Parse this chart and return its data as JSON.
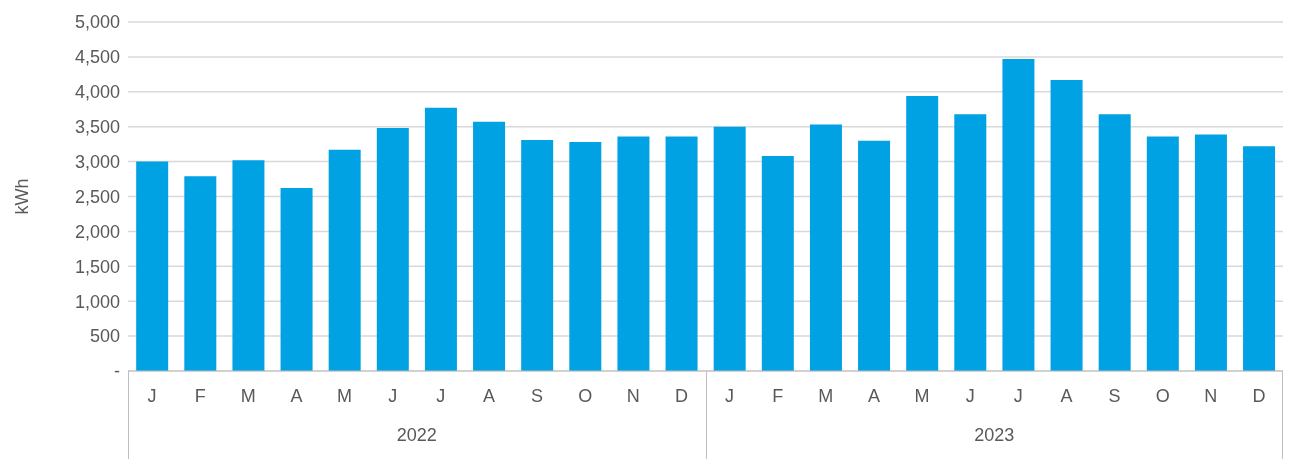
{
  "chart_data": {
    "type": "bar",
    "ylabel": "kWh",
    "categories": [
      "J",
      "F",
      "M",
      "A",
      "M",
      "J",
      "J",
      "A",
      "S",
      "O",
      "N",
      "D",
      "J",
      "F",
      "M",
      "A",
      "M",
      "J",
      "J",
      "A",
      "S",
      "O",
      "N",
      "D"
    ],
    "values": [
      3000,
      2790,
      3020,
      2620,
      3170,
      3480,
      3770,
      3570,
      3310,
      3280,
      3360,
      3360,
      3500,
      3080,
      3530,
      3300,
      3940,
      3680,
      4470,
      4170,
      3680,
      3360,
      3390,
      3220
    ],
    "color": "#00a2e3",
    "ylim": [
      0,
      5000
    ],
    "yticks": [
      {
        "value": 0,
        "label": "-"
      },
      {
        "value": 500,
        "label": "500"
      },
      {
        "value": 1000,
        "label": "1,000"
      },
      {
        "value": 1500,
        "label": "1,500"
      },
      {
        "value": 2000,
        "label": "2,000"
      },
      {
        "value": 2500,
        "label": "2,500"
      },
      {
        "value": 3000,
        "label": "3,000"
      },
      {
        "value": 3500,
        "label": "3,500"
      },
      {
        "value": 4000,
        "label": "4,000"
      },
      {
        "value": 4500,
        "label": "4,500"
      },
      {
        "value": 5000,
        "label": "5,000"
      }
    ],
    "grid": "y",
    "annotations": [
      "2022",
      "2023"
    ]
  }
}
